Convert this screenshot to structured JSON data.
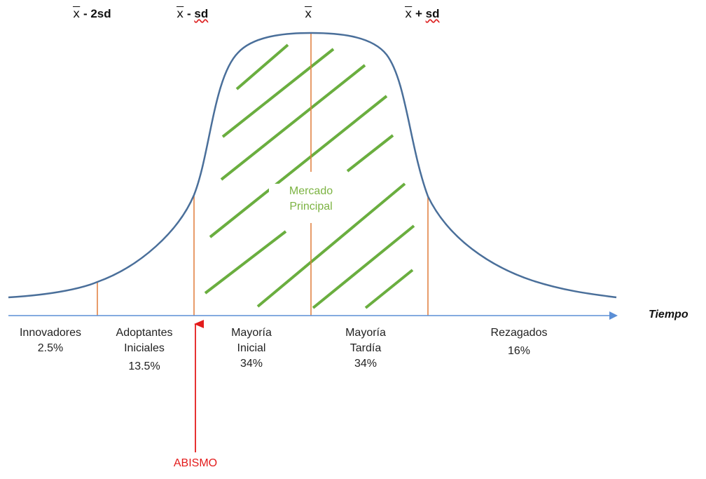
{
  "colors": {
    "curve": "#4a6f9a",
    "axis": "#5b8fd6",
    "dividers": "#e07b39",
    "hatch": "#6aae3f",
    "chasm": "#e31b1b",
    "market_text": "#7cb342"
  },
  "header": {
    "minus_2sd": {
      "symbol": "x",
      "suffix": " - 2sd"
    },
    "minus_sd": {
      "symbol": "x",
      "op": " - ",
      "sd": "sd"
    },
    "mean": {
      "symbol": "x"
    },
    "plus_sd": {
      "symbol": "x",
      "op": " + ",
      "sd": "sd"
    }
  },
  "axis": {
    "title": "Tiempo"
  },
  "segments": [
    {
      "line1": "Innovadores",
      "line2": "2.5%"
    },
    {
      "line1": "Adoptantes",
      "line2": "Iniciales",
      "line3": "13.5%"
    },
    {
      "line1": "Mayoría",
      "line2": "Inicial",
      "line3": "34%"
    },
    {
      "line1": "Mayoría",
      "line2": "Tardía",
      "line3": "34%"
    },
    {
      "line1": "Rezagados",
      "line2": "16%"
    }
  ],
  "market": {
    "line1": "Mercado",
    "line2": "Principal"
  },
  "chasm": {
    "label": "ABISMO"
  }
}
